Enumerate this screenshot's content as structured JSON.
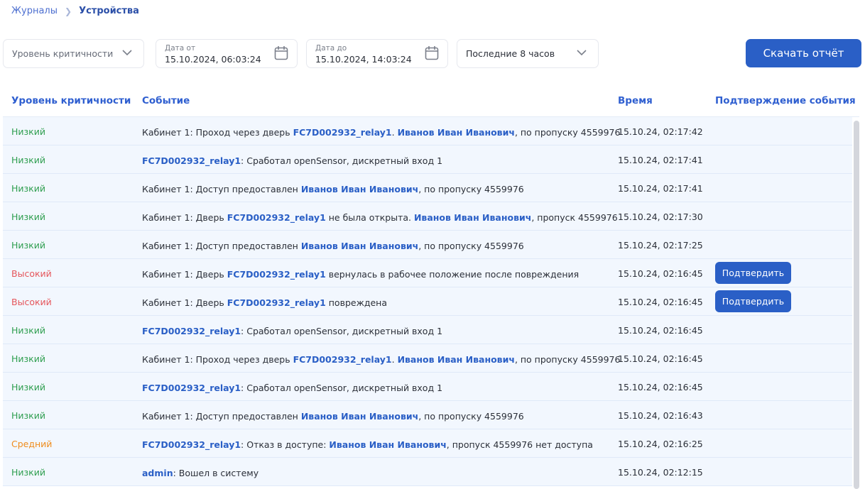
{
  "breadcrumb": {
    "parent": "Журналы",
    "current": "Устройства"
  },
  "filters": {
    "severity_placeholder": "Уровень критичности",
    "date_from": {
      "label": "Дата от",
      "value": "15.10.2024, 06:03:24"
    },
    "date_to": {
      "label": "Дата до",
      "value": "15.10.2024, 14:03:24"
    },
    "period": "Последние 8 часов",
    "download_label": "Скачать отчёт"
  },
  "table": {
    "columns": [
      "Уровень критичности",
      "Событие",
      "Время",
      "Подтверждение события"
    ],
    "confirm_label": "Подтвердить",
    "level_colors": {
      "Низкий": "#2e9e4f",
      "Высокий": "#e5565b",
      "Средний": "#ef8c1c"
    },
    "rows": [
      {
        "level": "Низкий",
        "time": "15.10.24, 02:17:42",
        "confirm": false,
        "event": [
          {
            "t": "Кабинет 1: Проход через дверь "
          },
          {
            "t": "FC7D002932_relay1",
            "b": true
          },
          {
            "t": ". "
          },
          {
            "t": "Иванов Иван Иванович",
            "b": true
          },
          {
            "t": ", по пропуску 4559976"
          }
        ]
      },
      {
        "level": "Низкий",
        "time": "15.10.24, 02:17:41",
        "confirm": false,
        "event": [
          {
            "t": "FC7D002932_relay1",
            "b": true
          },
          {
            "t": ": Сработал openSensor, дискретный вход 1"
          }
        ]
      },
      {
        "level": "Низкий",
        "time": "15.10.24, 02:17:41",
        "confirm": false,
        "event": [
          {
            "t": "Кабинет 1: Доступ предоставлен "
          },
          {
            "t": "Иванов Иван Иванович",
            "b": true
          },
          {
            "t": ", по пропуску 4559976"
          }
        ]
      },
      {
        "level": "Низкий",
        "time": "15.10.24, 02:17:30",
        "confirm": false,
        "event": [
          {
            "t": "Кабинет 1: Дверь "
          },
          {
            "t": "FC7D002932_relay1",
            "b": true
          },
          {
            "t": " не была открыта. "
          },
          {
            "t": "Иванов Иван Иванович",
            "b": true
          },
          {
            "t": ", пропуск 4559976"
          }
        ]
      },
      {
        "level": "Низкий",
        "time": "15.10.24, 02:17:25",
        "confirm": false,
        "event": [
          {
            "t": "Кабинет 1: Доступ предоставлен "
          },
          {
            "t": "Иванов Иван Иванович",
            "b": true
          },
          {
            "t": ", по пропуску 4559976"
          }
        ]
      },
      {
        "level": "Высокий",
        "time": "15.10.24, 02:16:45",
        "confirm": true,
        "event": [
          {
            "t": "Кабинет 1: Дверь "
          },
          {
            "t": "FC7D002932_relay1",
            "b": true
          },
          {
            "t": " вернулась в рабочее положение после повреждения"
          }
        ]
      },
      {
        "level": "Высокий",
        "time": "15.10.24, 02:16:45",
        "confirm": true,
        "event": [
          {
            "t": "Кабинет 1: Дверь "
          },
          {
            "t": "FC7D002932_relay1",
            "b": true
          },
          {
            "t": " повреждена"
          }
        ]
      },
      {
        "level": "Низкий",
        "time": "15.10.24, 02:16:45",
        "confirm": false,
        "event": [
          {
            "t": "FC7D002932_relay1",
            "b": true
          },
          {
            "t": ": Сработал openSensor, дискретный вход 1"
          }
        ]
      },
      {
        "level": "Низкий",
        "time": "15.10.24, 02:16:45",
        "confirm": false,
        "event": [
          {
            "t": "Кабинет 1: Проход через дверь "
          },
          {
            "t": "FC7D002932_relay1",
            "b": true
          },
          {
            "t": ". "
          },
          {
            "t": "Иванов Иван Иванович",
            "b": true
          },
          {
            "t": ", по пропуску 4559976"
          }
        ]
      },
      {
        "level": "Низкий",
        "time": "15.10.24, 02:16:45",
        "confirm": false,
        "event": [
          {
            "t": "FC7D002932_relay1",
            "b": true
          },
          {
            "t": ": Сработал openSensor, дискретный вход 1"
          }
        ]
      },
      {
        "level": "Низкий",
        "time": "15.10.24, 02:16:43",
        "confirm": false,
        "event": [
          {
            "t": "Кабинет 1: Доступ предоставлен "
          },
          {
            "t": "Иванов Иван Иванович",
            "b": true
          },
          {
            "t": ", по пропуску 4559976"
          }
        ]
      },
      {
        "level": "Средний",
        "time": "15.10.24, 02:16:25",
        "confirm": false,
        "event": [
          {
            "t": "FC7D002932_relay1",
            "b": true
          },
          {
            "t": ": Отказ в доступе: "
          },
          {
            "t": "Иванов Иван Иванович",
            "b": true
          },
          {
            "t": ", пропуск 4559976 нет доступа"
          }
        ]
      },
      {
        "level": "Низкий",
        "time": "15.10.24, 02:12:15",
        "confirm": false,
        "event": [
          {
            "t": "admin",
            "b": true
          },
          {
            "t": ": Вошел в систему"
          }
        ]
      }
    ]
  }
}
